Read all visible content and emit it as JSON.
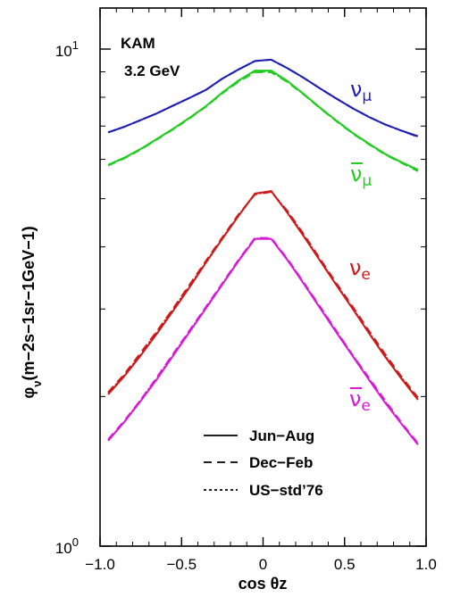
{
  "chart_data": {
    "type": "line",
    "xlabel": "cos θz",
    "ylabel": "φ",
    "ylabel_sub": "ν",
    "ylabel_units": "(m−2s−1sr−1GeV−1)",
    "xlim": [
      -1.0,
      1.0
    ],
    "ylim": [
      1,
      10
    ],
    "yscale": "log",
    "x_ticks": [
      "−1.0",
      "−0.5",
      "0",
      "0.5",
      "1.0"
    ],
    "y_ticks": [
      {
        "base": "10",
        "exp": "0"
      },
      {
        "base": "10",
        "exp": "1"
      }
    ],
    "annotations": [
      "KAM",
      "3.2 GeV"
    ],
    "x": [
      -0.95,
      -0.85,
      -0.75,
      -0.65,
      -0.55,
      -0.45,
      -0.35,
      -0.25,
      -0.15,
      -0.05,
      0.05,
      0.15,
      0.25,
      0.35,
      0.45,
      0.55,
      0.65,
      0.75,
      0.85,
      0.95
    ],
    "series": [
      {
        "name": "νμ",
        "label_main": "ν",
        "label_sub": "μ",
        "label_bar": false,
        "color": "#1f1fb4",
        "styles": {
          "Jun-Aug": [
            6.8,
            6.98,
            7.2,
            7.43,
            7.7,
            7.98,
            8.28,
            8.72,
            9.1,
            9.46,
            9.52,
            9.15,
            8.75,
            8.33,
            7.95,
            7.6,
            7.3,
            7.05,
            6.85,
            6.68
          ],
          "Dec-Feb": [
            6.8,
            6.98,
            7.2,
            7.43,
            7.7,
            7.98,
            8.28,
            8.72,
            9.1,
            9.46,
            9.52,
            9.15,
            8.75,
            8.33,
            7.95,
            7.6,
            7.3,
            7.05,
            6.85,
            6.66
          ],
          "US-std'76": [
            6.8,
            6.98,
            7.2,
            7.43,
            7.7,
            7.98,
            8.28,
            8.72,
            9.1,
            9.46,
            9.52,
            9.15,
            8.75,
            8.33,
            7.95,
            7.6,
            7.3,
            7.05,
            6.85,
            6.67
          ]
        }
      },
      {
        "name": "ν̄μ",
        "label_main": "ν",
        "label_sub": "μ",
        "label_bar": true,
        "color": "#22cc22",
        "styles": {
          "Jun-Aug": [
            5.85,
            6.05,
            6.3,
            6.6,
            6.92,
            7.28,
            7.68,
            8.18,
            8.65,
            9.05,
            9.05,
            8.62,
            8.12,
            7.62,
            7.18,
            6.78,
            6.45,
            6.15,
            5.92,
            5.72
          ],
          "Dec-Feb": [
            5.83,
            6.03,
            6.28,
            6.58,
            6.9,
            7.26,
            7.66,
            8.15,
            8.6,
            8.98,
            8.98,
            8.58,
            8.1,
            7.6,
            7.16,
            6.76,
            6.43,
            6.13,
            5.9,
            5.68
          ],
          "US-std'76": [
            5.84,
            6.04,
            6.29,
            6.59,
            6.91,
            7.27,
            7.67,
            8.16,
            8.62,
            9.01,
            9.01,
            8.6,
            8.11,
            7.61,
            7.17,
            6.77,
            6.44,
            6.14,
            5.91,
            5.7
          ]
        }
      },
      {
        "name": "νe",
        "label_main": "ν",
        "label_sub": "e",
        "label_bar": false,
        "color": "#cc1a1a",
        "styles": {
          "Jun-Aug": [
            2.02,
            2.2,
            2.42,
            2.68,
            2.98,
            3.32,
            3.72,
            4.15,
            4.62,
            5.12,
            5.18,
            4.68,
            4.2,
            3.75,
            3.35,
            3.0,
            2.68,
            2.4,
            2.17,
            1.97
          ],
          "Dec-Feb": [
            2.04,
            2.22,
            2.45,
            2.71,
            3.01,
            3.36,
            3.75,
            4.18,
            4.65,
            5.1,
            5.16,
            4.72,
            4.24,
            3.78,
            3.38,
            3.03,
            2.71,
            2.43,
            2.19,
            1.99
          ],
          "US-std'76": [
            2.03,
            2.21,
            2.43,
            2.7,
            3.0,
            3.34,
            3.73,
            4.16,
            4.63,
            5.11,
            5.17,
            4.7,
            4.22,
            3.76,
            3.36,
            3.01,
            2.69,
            2.41,
            2.18,
            1.98
          ]
        }
      },
      {
        "name": "ν̄e",
        "label_main": "ν",
        "label_sub": "e",
        "label_bar": true,
        "color": "#d61ad6",
        "styles": {
          "Jun-Aug": [
            1.63,
            1.78,
            1.96,
            2.17,
            2.42,
            2.7,
            3.01,
            3.36,
            3.75,
            4.15,
            4.15,
            3.76,
            3.37,
            3.01,
            2.69,
            2.41,
            2.16,
            1.94,
            1.76,
            1.6
          ],
          "Dec-Feb": [
            1.64,
            1.79,
            1.97,
            2.19,
            2.44,
            2.72,
            3.03,
            3.38,
            3.77,
            4.17,
            4.17,
            3.78,
            3.39,
            3.03,
            2.71,
            2.42,
            2.18,
            1.96,
            1.77,
            1.61
          ],
          "US-std'76": [
            1.63,
            1.78,
            1.97,
            2.18,
            2.43,
            2.71,
            3.02,
            3.37,
            3.76,
            4.16,
            4.16,
            3.77,
            3.38,
            3.02,
            2.7,
            2.42,
            2.17,
            1.95,
            1.76,
            1.6
          ]
        }
      }
    ],
    "legend": [
      {
        "label": "Jun−Aug",
        "style": "solid"
      },
      {
        "label": "Dec−Feb",
        "style": "dashed"
      },
      {
        "label": "US−std’76",
        "style": "dotted"
      }
    ],
    "legend_placement": "bottom-center",
    "grid": false
  }
}
